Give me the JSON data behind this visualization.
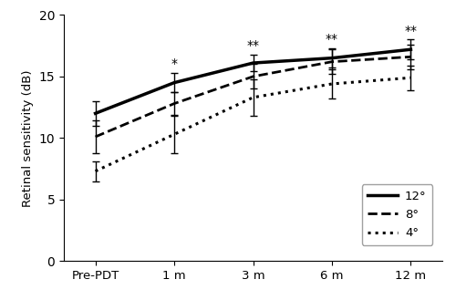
{
  "x_labels": [
    "Pre-PDT",
    "1 m",
    "3 m",
    "6 m",
    "12 m"
  ],
  "x_positions": [
    0,
    1,
    2,
    3,
    4
  ],
  "series": {
    "12deg": {
      "y": [
        12.0,
        14.5,
        16.1,
        16.5,
        17.2
      ],
      "yerr_lo": [
        1.0,
        0.8,
        0.7,
        0.8,
        0.8
      ],
      "yerr_hi": [
        1.0,
        0.8,
        0.7,
        0.8,
        0.8
      ],
      "linestyle": "solid",
      "linewidth": 2.5,
      "label": "12°"
    },
    "8deg": {
      "y": [
        10.1,
        12.8,
        15.0,
        16.2,
        16.6
      ],
      "yerr_lo": [
        1.3,
        0.9,
        1.0,
        1.0,
        1.0
      ],
      "yerr_hi": [
        1.3,
        0.9,
        1.0,
        1.0,
        1.0
      ],
      "linestyle": "dashed",
      "linewidth": 2.0,
      "label": "8°"
    },
    "4deg": {
      "y": [
        7.3,
        10.3,
        13.3,
        14.4,
        14.9
      ],
      "yerr_lo": [
        0.8,
        1.5,
        1.5,
        1.2,
        1.0
      ],
      "yerr_hi": [
        0.8,
        1.5,
        1.5,
        1.2,
        1.0
      ],
      "linestyle": "dotted",
      "linewidth": 2.2,
      "label": "4°"
    }
  },
  "significance": {
    "1 m": "*",
    "3 m": "**",
    "6 m": "**",
    "12 m": "**"
  },
  "sig_y_positions": {
    "1 m": 15.5,
    "3 m": 17.0,
    "6 m": 17.5,
    "12 m": 18.2
  },
  "ylabel": "Retinal sensitivity (dB)",
  "ylim": [
    0,
    20
  ],
  "yticks": [
    0,
    5,
    10,
    15,
    20
  ],
  "color": "#000000",
  "background_color": "#ffffff",
  "legend_fontsize": 9.5
}
